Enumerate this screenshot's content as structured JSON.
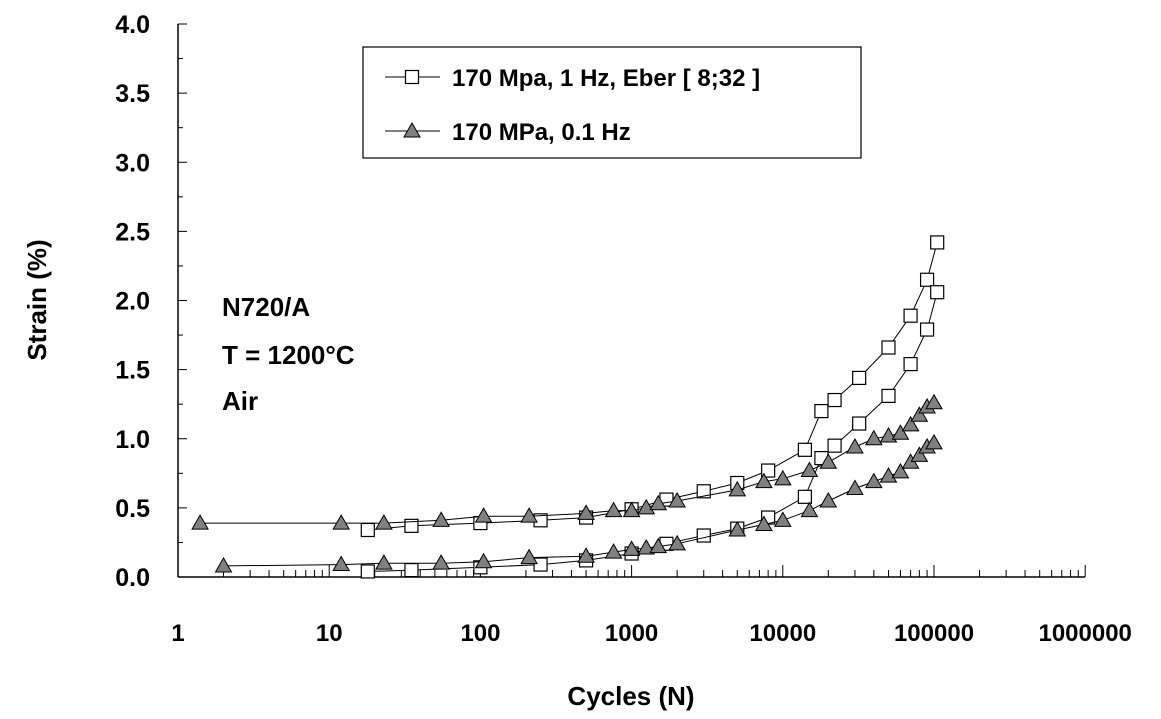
{
  "chart_data": {
    "type": "scatter",
    "xscale": "log",
    "xlim": [
      1,
      1000000
    ],
    "ylim": [
      0,
      4.0
    ],
    "xlabel": "Cycles (N)",
    "ylabel": "Strain (%)",
    "x_tick_labels": [
      "1",
      "10",
      "100",
      "1000",
      "10000",
      "100000",
      "1000000"
    ],
    "y_tick_labels": [
      "0.0",
      "0.5",
      "1.0",
      "1.5",
      "2.0",
      "2.5",
      "3.0",
      "3.5",
      "4.0"
    ],
    "annotation": [
      "N720/A",
      "T = 1200°C",
      "Air"
    ],
    "legend_position": "top-center",
    "series": [
      {
        "name": "170 Mpa, 1 Hz, Eber [ 8;32 ]",
        "marker": "square",
        "color": "#ffffff",
        "curves": [
          [
            {
              "x": 18,
              "y": 0.34
            },
            {
              "x": 35,
              "y": 0.37
            },
            {
              "x": 100,
              "y": 0.39
            },
            {
              "x": 250,
              "y": 0.41
            },
            {
              "x": 500,
              "y": 0.43
            },
            {
              "x": 1000,
              "y": 0.49
            },
            {
              "x": 1700,
              "y": 0.56
            },
            {
              "x": 3000,
              "y": 0.62
            },
            {
              "x": 5000,
              "y": 0.68
            },
            {
              "x": 8000,
              "y": 0.77
            },
            {
              "x": 14000,
              "y": 0.92
            },
            {
              "x": 18000,
              "y": 1.2
            },
            {
              "x": 22000,
              "y": 1.28
            },
            {
              "x": 32000,
              "y": 1.44
            },
            {
              "x": 50000,
              "y": 1.66
            },
            {
              "x": 70000,
              "y": 1.89
            },
            {
              "x": 90000,
              "y": 2.15
            },
            {
              "x": 105000,
              "y": 2.42
            }
          ],
          [
            {
              "x": 18,
              "y": 0.04
            },
            {
              "x": 35,
              "y": 0.05
            },
            {
              "x": 100,
              "y": 0.07
            },
            {
              "x": 250,
              "y": 0.09
            },
            {
              "x": 500,
              "y": 0.12
            },
            {
              "x": 1000,
              "y": 0.17
            },
            {
              "x": 1700,
              "y": 0.24
            },
            {
              "x": 3000,
              "y": 0.3
            },
            {
              "x": 5000,
              "y": 0.35
            },
            {
              "x": 8000,
              "y": 0.43
            },
            {
              "x": 14000,
              "y": 0.58
            },
            {
              "x": 18000,
              "y": 0.86
            },
            {
              "x": 22000,
              "y": 0.95
            },
            {
              "x": 32000,
              "y": 1.11
            },
            {
              "x": 50000,
              "y": 1.31
            },
            {
              "x": 70000,
              "y": 1.54
            },
            {
              "x": 90000,
              "y": 1.79
            },
            {
              "x": 105000,
              "y": 2.06
            }
          ]
        ]
      },
      {
        "name": "170 MPa, 0.1 Hz",
        "marker": "triangle",
        "color": "#808080",
        "curves": [
          [
            {
              "x": 1.4,
              "y": 0.39
            },
            {
              "x": 12,
              "y": 0.39
            },
            {
              "x": 23,
              "y": 0.39
            },
            {
              "x": 55,
              "y": 0.41
            },
            {
              "x": 105,
              "y": 0.44
            },
            {
              "x": 210,
              "y": 0.44
            },
            {
              "x": 500,
              "y": 0.46
            },
            {
              "x": 760,
              "y": 0.48
            },
            {
              "x": 1000,
              "y": 0.48
            },
            {
              "x": 1250,
              "y": 0.5
            },
            {
              "x": 1500,
              "y": 0.53
            },
            {
              "x": 2000,
              "y": 0.55
            },
            {
              "x": 5000,
              "y": 0.63
            },
            {
              "x": 7500,
              "y": 0.69
            },
            {
              "x": 10000,
              "y": 0.71
            },
            {
              "x": 15000,
              "y": 0.77
            },
            {
              "x": 20000,
              "y": 0.83
            },
            {
              "x": 30000,
              "y": 0.94
            },
            {
              "x": 40000,
              "y": 1.0
            },
            {
              "x": 50000,
              "y": 1.02
            },
            {
              "x": 60000,
              "y": 1.04
            },
            {
              "x": 70000,
              "y": 1.1
            },
            {
              "x": 80000,
              "y": 1.17
            },
            {
              "x": 90000,
              "y": 1.23
            },
            {
              "x": 100000,
              "y": 1.26
            }
          ],
          [
            {
              "x": 2,
              "y": 0.08
            },
            {
              "x": 12,
              "y": 0.09
            },
            {
              "x": 23,
              "y": 0.1
            },
            {
              "x": 55,
              "y": 0.1
            },
            {
              "x": 105,
              "y": 0.11
            },
            {
              "x": 210,
              "y": 0.14
            },
            {
              "x": 500,
              "y": 0.15
            },
            {
              "x": 760,
              "y": 0.18
            },
            {
              "x": 1000,
              "y": 0.2
            },
            {
              "x": 1250,
              "y": 0.21
            },
            {
              "x": 1500,
              "y": 0.22
            },
            {
              "x": 2000,
              "y": 0.24
            },
            {
              "x": 5000,
              "y": 0.34
            },
            {
              "x": 7500,
              "y": 0.38
            },
            {
              "x": 10000,
              "y": 0.41
            },
            {
              "x": 15000,
              "y": 0.48
            },
            {
              "x": 20000,
              "y": 0.55
            },
            {
              "x": 30000,
              "y": 0.64
            },
            {
              "x": 40000,
              "y": 0.69
            },
            {
              "x": 50000,
              "y": 0.73
            },
            {
              "x": 60000,
              "y": 0.76
            },
            {
              "x": 70000,
              "y": 0.83
            },
            {
              "x": 80000,
              "y": 0.88
            },
            {
              "x": 90000,
              "y": 0.94
            },
            {
              "x": 100000,
              "y": 0.97
            }
          ]
        ]
      }
    ]
  }
}
